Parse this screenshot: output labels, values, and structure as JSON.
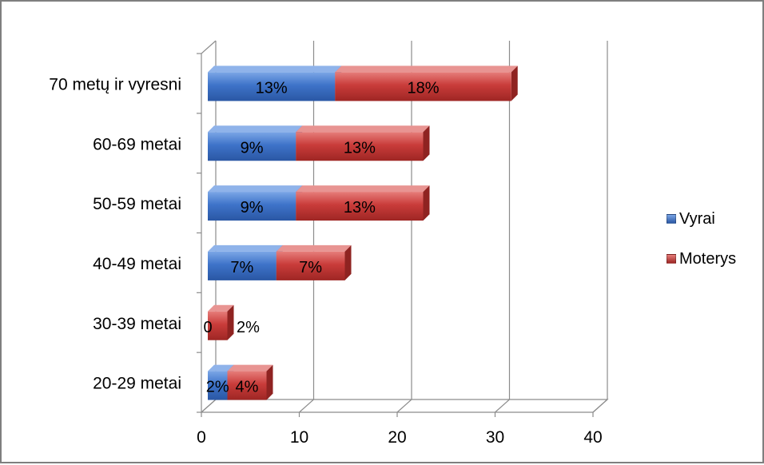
{
  "chart_data": {
    "type": "bar",
    "orientation": "horizontal",
    "stacked": true,
    "style": "3d",
    "title": "",
    "xlabel": "",
    "ylabel": "",
    "xlim": [
      0,
      40
    ],
    "x_ticks": [
      "0",
      "10",
      "20",
      "30",
      "40"
    ],
    "grid": true,
    "legend_position": "right",
    "categories": [
      "70 metų ir vyresni",
      "60-69 metai",
      "50-59 metai",
      "40-49 metai",
      "30-39 metai",
      "20-29 metai"
    ],
    "series": [
      {
        "name": "Vyrai",
        "color": "#3e73c9",
        "values": [
          13,
          9,
          9,
          7,
          0,
          2
        ],
        "labels": [
          "13%",
          "9%",
          "9%",
          "7%",
          "0",
          "2%"
        ]
      },
      {
        "name": "Moterys",
        "color": "#c93c3a",
        "values": [
          18,
          13,
          13,
          7,
          2,
          4
        ],
        "labels": [
          "18%",
          "13%",
          "13%",
          "7%",
          "2%",
          "4%"
        ]
      }
    ]
  }
}
